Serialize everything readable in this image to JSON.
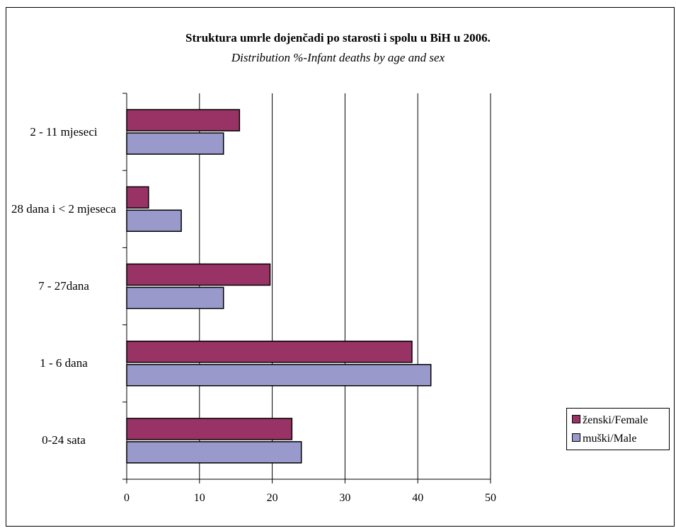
{
  "chart_data": {
    "type": "bar",
    "orientation": "horizontal",
    "title": "Struktura umrle dojenčadi po starosti i spolu u BiH u 2006.",
    "subtitle": "Distribution %-Infant deaths by age and sex",
    "categories": [
      "2 - 11 mjeseci",
      "28 dana i < 2 mjeseca",
      "7 - 27dana",
      "1 - 6 dana",
      "0-24 sata"
    ],
    "series": [
      {
        "name": "ženski/Female",
        "color": "#993366",
        "values": [
          15.5,
          3.0,
          19.7,
          39.2,
          22.7
        ]
      },
      {
        "name": "muški/Male",
        "color": "#9999cc",
        "values": [
          13.3,
          7.5,
          13.3,
          41.8,
          24.0
        ]
      }
    ],
    "xlim": [
      0,
      50
    ],
    "xticks": [
      "0",
      "10",
      "20",
      "30",
      "40",
      "50"
    ],
    "grid": "vertical",
    "legend": "right"
  }
}
